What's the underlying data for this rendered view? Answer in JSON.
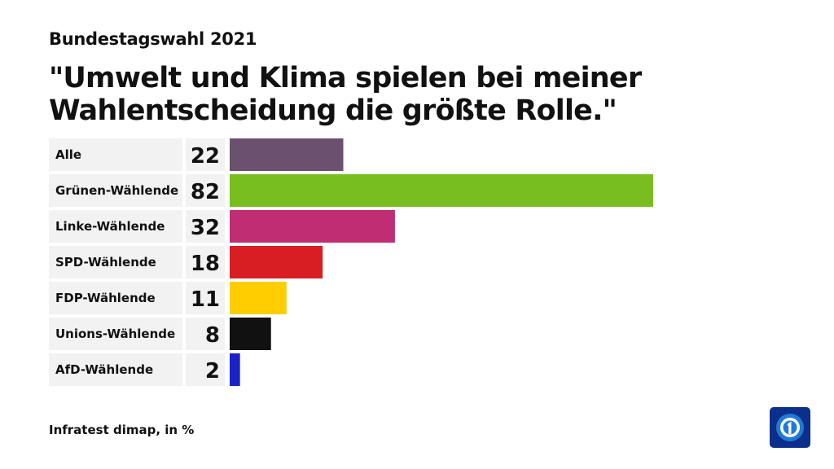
{
  "header": {
    "supertitle": "Bundestagswahl 2021",
    "title": "\"Umwelt und Klima spielen bei meiner Wahlentscheidung die größte Rolle.\""
  },
  "footer": {
    "source": "Infratest dimap, in %"
  },
  "logo": {
    "icon": "ard-logo-icon"
  },
  "chart_data": {
    "type": "bar",
    "orientation": "horizontal",
    "categories": [
      "Alle",
      "Grünen-Wählende",
      "Linke-Wählende",
      "SPD-Wählende",
      "FDP-Wählende",
      "Unions-Wählende",
      "AfD-Wählende"
    ],
    "values": [
      22,
      82,
      32,
      18,
      11,
      8,
      2
    ],
    "colors": [
      "#6b5070",
      "#78be1e",
      "#bf2e73",
      "#d81e23",
      "#ffcd00",
      "#111111",
      "#1a22c8"
    ],
    "xlim": [
      0,
      82
    ],
    "grid": false,
    "legend": "none"
  }
}
